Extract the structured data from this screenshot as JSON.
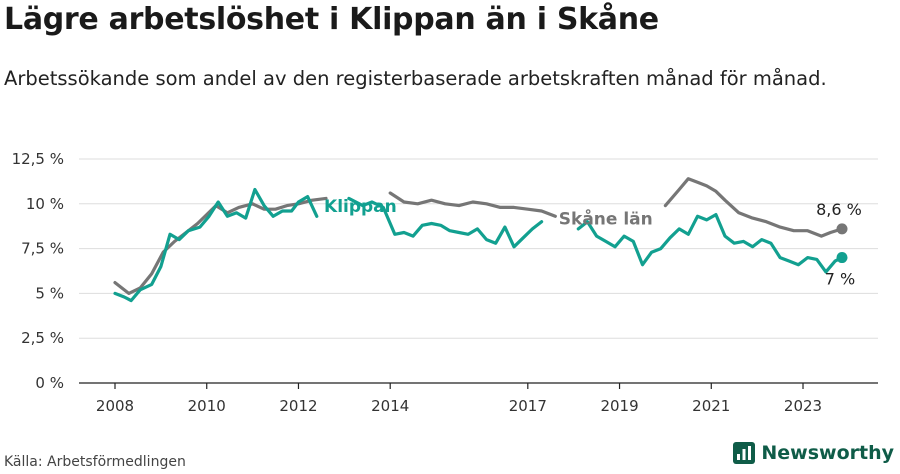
{
  "title": "Lägre arbetslöshet i Klippan än i Skåne",
  "subtitle": "Arbetssökande som andel av den registerbaserade arbetskraften månad för månad.",
  "source": "Källa: Arbetsförmedlingen",
  "brand": "Newsworthy",
  "colors": {
    "klippan": "#12a090",
    "skane": "#767676",
    "grid": "#dddddd",
    "brand": "#0f5c48"
  },
  "chart_data": {
    "type": "line",
    "title": "Lägre arbetslöshet i Klippan än i Skåne",
    "xlabel": "",
    "ylabel": "",
    "ylim": [
      0,
      12.5
    ],
    "xlim": [
      2008,
      2023.85
    ],
    "y_ticks": [
      0,
      2.5,
      5,
      7.5,
      10,
      12.5
    ],
    "y_tick_labels": [
      "0 %",
      "2,5 %",
      "5 %",
      "7,5 %",
      "10 %",
      "12,5 %"
    ],
    "x_ticks": [
      2008,
      2010,
      2012,
      2014,
      2017,
      2019,
      2021,
      2023
    ],
    "x_tick_labels": [
      "2008",
      "2010",
      "2012",
      "2014",
      "2017",
      "2019",
      "2021",
      "2023"
    ],
    "grid": true,
    "series": [
      {
        "name": "Skåne län",
        "label": "Skåne län",
        "end_label": "8,6 %",
        "x": [
          2008.0,
          2008.3,
          2008.55,
          2008.8,
          2009.05,
          2009.3,
          2009.55,
          2009.8,
          2010.0,
          2010.2,
          2010.45,
          2010.7,
          2011.0,
          2011.25,
          2011.5,
          2011.75,
          2012.0,
          2012.3,
          2012.6,
          2012.9,
          2013.2,
          2013.5,
          2013.8,
          2014.0,
          2014.3,
          2014.6,
          2014.9,
          2015.2,
          2015.5,
          2015.8,
          2016.1,
          2016.4,
          2016.7,
          2017.0,
          2017.3,
          2017.6,
          2017.9,
          2018.2,
          2018.5,
          2018.8,
          2019.1,
          2019.4,
          2019.7,
          2020.0,
          2020.3,
          2020.5,
          2020.7,
          2020.9,
          2021.1,
          2021.3,
          2021.6,
          2021.9,
          2022.2,
          2022.5,
          2022.8,
          2023.1,
          2023.4,
          2023.6,
          2023.85
        ],
        "values": [
          5.6,
          5.0,
          5.3,
          6.1,
          7.3,
          7.9,
          8.4,
          8.9,
          9.4,
          9.9,
          9.5,
          9.8,
          10.0,
          9.7,
          9.7,
          9.9,
          10.0,
          10.2,
          10.3,
          10.2,
          10.1,
          10.4,
          10.5,
          10.6,
          10.1,
          10.0,
          10.2,
          10.0,
          9.9,
          10.1,
          10.0,
          9.8,
          9.8,
          9.7,
          9.6,
          9.3,
          9.1,
          9.0,
          8.9,
          8.7,
          8.7,
          8.9,
          9.3,
          9.9,
          10.8,
          11.4,
          11.2,
          11.0,
          10.7,
          10.2,
          9.5,
          9.2,
          9.0,
          8.7,
          8.5,
          8.5,
          8.2,
          8.4,
          8.6
        ],
        "label_gaps": [
          [
            2012.85,
            2013.95
          ],
          [
            2017.7,
            2019.75
          ]
        ]
      },
      {
        "name": "Klippan",
        "label": "Klippan",
        "end_label": "7 %",
        "x": [
          2008.0,
          2008.2,
          2008.35,
          2008.55,
          2008.8,
          2009.0,
          2009.2,
          2009.4,
          2009.6,
          2009.85,
          2010.05,
          2010.25,
          2010.45,
          2010.65,
          2010.85,
          2011.05,
          2011.25,
          2011.45,
          2011.65,
          2011.85,
          2012.0,
          2012.2,
          2012.4,
          2012.6,
          2012.85,
          2013.1,
          2013.4,
          2013.6,
          2013.85,
          2014.1,
          2014.3,
          2014.5,
          2014.7,
          2014.9,
          2015.1,
          2015.3,
          2015.5,
          2015.7,
          2015.9,
          2016.1,
          2016.3,
          2016.5,
          2016.7,
          2016.9,
          2017.1,
          2017.3,
          2017.5,
          2017.7,
          2017.9,
          2018.1,
          2018.3,
          2018.5,
          2018.7,
          2018.9,
          2019.1,
          2019.3,
          2019.5,
          2019.7,
          2019.9,
          2020.1,
          2020.3,
          2020.5,
          2020.7,
          2020.9,
          2021.1,
          2021.3,
          2021.5,
          2021.7,
          2021.9,
          2022.1,
          2022.3,
          2022.5,
          2022.7,
          2022.9,
          2023.1,
          2023.3,
          2023.5,
          2023.7,
          2023.85
        ],
        "values": [
          5.0,
          4.8,
          4.6,
          5.2,
          5.5,
          6.5,
          8.3,
          8.0,
          8.5,
          8.7,
          9.3,
          10.1,
          9.3,
          9.5,
          9.2,
          10.8,
          9.9,
          9.3,
          9.6,
          9.6,
          10.1,
          10.4,
          9.3,
          9.6,
          9.9,
          10.3,
          9.9,
          10.1,
          9.8,
          8.3,
          8.4,
          8.2,
          8.8,
          8.9,
          8.8,
          8.5,
          8.4,
          8.3,
          8.6,
          8.0,
          7.8,
          8.7,
          7.6,
          8.1,
          8.6,
          9.0,
          8.4,
          8.2,
          8.5,
          8.6,
          9.0,
          8.2,
          7.9,
          7.6,
          8.2,
          7.9,
          6.6,
          7.3,
          7.5,
          8.1,
          8.6,
          8.3,
          9.3,
          9.1,
          9.4,
          8.2,
          7.8,
          7.9,
          7.6,
          8.0,
          7.8,
          7.0,
          6.8,
          6.6,
          7.0,
          6.9,
          6.2,
          6.8,
          7.0
        ],
        "label_gaps": [
          [
            2012.5,
            2012.9
          ],
          [
            2013.95,
            2014.05
          ],
          [
            2017.35,
            2018.05
          ]
        ]
      }
    ]
  }
}
